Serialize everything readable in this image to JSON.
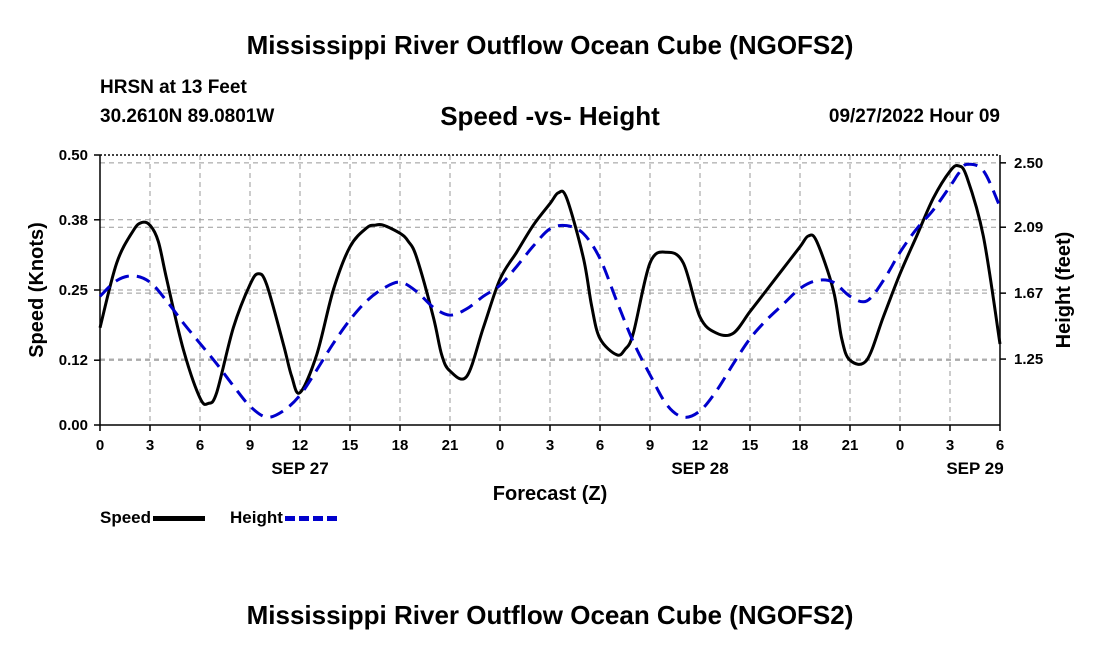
{
  "header": {
    "title": "Mississippi River Outflow Ocean Cube (NGOFS2)",
    "station": "HRSN at 13 Feet",
    "coords": "30.2610N  89.0801W",
    "subtitle": "Speed -vs- Height",
    "datestamp": "09/27/2022 Hour 09"
  },
  "footer": {
    "title": "Mississippi River Outflow Ocean Cube (NGOFS2)"
  },
  "legend": {
    "speed_label": "Speed",
    "height_label": "Height"
  },
  "colors": {
    "speed": "#000000",
    "height": "#0000cc",
    "grid": "#999999"
  },
  "chart_data": {
    "type": "line",
    "xlabel": "Forecast (Z)",
    "ylabel_left": "Speed (Knots)",
    "ylabel_right": "Height (feet)",
    "x_range": [
      0,
      54
    ],
    "y_left_range": [
      0,
      0.5
    ],
    "y_right_range": [
      0.83,
      2.55
    ],
    "x_ticks": [
      0,
      3,
      6,
      9,
      12,
      15,
      18,
      21,
      24,
      27,
      30,
      33,
      36,
      39,
      42,
      45,
      48,
      51,
      54
    ],
    "x_tick_labels": [
      "0",
      "3",
      "6",
      "9",
      "12",
      "15",
      "18",
      "21",
      "0",
      "3",
      "6",
      "9",
      "12",
      "15",
      "18",
      "21",
      "0",
      "3",
      "6"
    ],
    "date_labels": [
      {
        "x": 12,
        "label": "SEP 27"
      },
      {
        "x": 36,
        "label": "SEP 28"
      },
      {
        "x": 52.5,
        "label": "SEP 29"
      }
    ],
    "y_left_ticks": [
      0.0,
      0.12,
      0.25,
      0.38,
      0.5
    ],
    "y_left_tick_labels": [
      "0.00",
      "0.12",
      "0.25",
      "0.38",
      "0.50"
    ],
    "y_right_ticks": [
      1.25,
      1.67,
      2.09,
      2.5
    ],
    "y_right_tick_labels": [
      "1.25",
      "1.67",
      "2.09",
      "2.50"
    ],
    "grid": true,
    "series": [
      {
        "name": "Speed",
        "axis": "left",
        "style": "solid",
        "x": [
          0,
          1,
          2,
          2.5,
          3,
          3.5,
          4,
          5,
          6,
          6.5,
          7,
          8,
          9,
          9.5,
          10,
          11,
          11.5,
          12,
          13,
          14,
          15,
          16,
          16.5,
          17,
          18,
          18.5,
          19,
          20,
          20.5,
          21,
          22,
          23,
          24,
          25,
          26,
          27,
          27.5,
          28,
          29,
          29.5,
          30,
          31,
          31.5,
          32,
          33,
          34,
          35,
          36,
          37,
          38,
          39,
          40,
          41,
          42,
          42.5,
          43,
          44,
          44.5,
          45,
          46,
          47,
          48,
          49,
          50,
          51,
          51.5,
          52,
          53,
          54
        ],
        "y": [
          0.18,
          0.3,
          0.36,
          0.375,
          0.37,
          0.34,
          0.27,
          0.14,
          0.05,
          0.04,
          0.06,
          0.18,
          0.26,
          0.28,
          0.26,
          0.15,
          0.09,
          0.06,
          0.13,
          0.25,
          0.33,
          0.365,
          0.37,
          0.37,
          0.355,
          0.34,
          0.31,
          0.2,
          0.13,
          0.1,
          0.09,
          0.18,
          0.27,
          0.32,
          0.37,
          0.41,
          0.43,
          0.42,
          0.31,
          0.22,
          0.16,
          0.13,
          0.14,
          0.17,
          0.3,
          0.32,
          0.3,
          0.2,
          0.17,
          0.17,
          0.21,
          0.25,
          0.29,
          0.33,
          0.35,
          0.34,
          0.25,
          0.16,
          0.12,
          0.12,
          0.2,
          0.28,
          0.35,
          0.42,
          0.47,
          0.48,
          0.46,
          0.35,
          0.15
        ]
      },
      {
        "name": "Height",
        "axis": "right",
        "style": "dashed",
        "x": [
          0,
          1,
          2,
          3,
          4,
          5,
          6,
          7,
          8,
          9,
          10,
          11,
          12,
          13,
          14,
          15,
          16,
          17,
          18,
          19,
          20,
          21,
          22,
          23,
          24,
          25,
          26,
          27,
          28,
          29,
          30,
          31,
          32,
          33,
          34,
          35,
          36,
          37,
          38,
          39,
          40,
          41,
          42,
          43,
          44,
          45,
          46,
          47,
          48,
          49,
          50,
          51,
          51.5,
          52,
          53,
          54
        ],
        "y": [
          1.65,
          1.75,
          1.78,
          1.74,
          1.62,
          1.48,
          1.35,
          1.22,
          1.08,
          0.95,
          0.88,
          0.92,
          1.02,
          1.18,
          1.35,
          1.5,
          1.62,
          1.7,
          1.74,
          1.68,
          1.58,
          1.53,
          1.57,
          1.65,
          1.72,
          1.84,
          1.97,
          2.08,
          2.1,
          2.05,
          1.89,
          1.62,
          1.36,
          1.15,
          0.96,
          0.88,
          0.92,
          1.05,
          1.22,
          1.38,
          1.5,
          1.6,
          1.7,
          1.75,
          1.74,
          1.65,
          1.62,
          1.75,
          1.93,
          2.08,
          2.2,
          2.35,
          2.43,
          2.49,
          2.45,
          2.22
        ]
      }
    ]
  }
}
